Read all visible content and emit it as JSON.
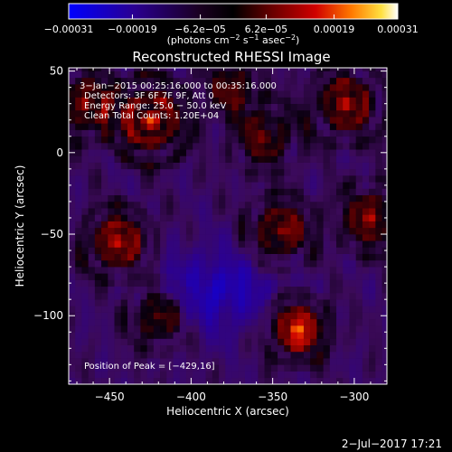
{
  "chart_data": {
    "type": "heatmap",
    "title": "Reconstructed RHESSI Image",
    "xlabel": "Heliocentric X (arcsec)",
    "ylabel": "Heliocentric Y (arcsec)",
    "xlim": [
      -475,
      -280
    ],
    "ylim": [
      -142,
      52
    ],
    "x_ticks": [
      -450,
      -400,
      -350,
      -300
    ],
    "x_tick_labels": [
      "−450",
      "−400",
      "−350",
      "−300"
    ],
    "y_ticks": [
      50,
      0,
      -50,
      -100
    ],
    "y_tick_labels": [
      "50",
      "0",
      "−50",
      "−100"
    ],
    "colorbar": {
      "min": -0.00031,
      "max": 0.00031,
      "ticks": [
        -0.00031,
        -0.00019,
        -6.2e-05,
        6.2e-05,
        0.00019,
        0.00031
      ],
      "tick_labels": [
        "−0.00031",
        "−0.00019",
        "−6.2e−05",
        "6.2e−05",
        "0.00019",
        "0.00031"
      ],
      "unit_label": {
        "prefix": "(photons cm",
        "exp1": "−2",
        "mid1": " s",
        "exp2": "−1",
        "mid2": " asec",
        "exp3": "−2",
        "suffix": ")"
      }
    },
    "annotations": {
      "time_range": "3−Jan−2015 00:25:16.000 to 00:35:16.000",
      "detectors": "Detectors: 3F 6F 7F 9F, Att 0",
      "energy_range": "Energy Range: 25.0 − 50.0 keV",
      "clean_counts": "Clean    Total Counts: 1.20E+04",
      "peak": "Position of Peak = [−429,16]"
    },
    "sources": [
      {
        "x": -425,
        "y": 20,
        "amp": 1.0,
        "ring": 14
      },
      {
        "x": -445,
        "y": -55,
        "amp": 0.85,
        "ring": 12
      },
      {
        "x": -335,
        "y": -108,
        "amp": 1.0,
        "ring": 11
      },
      {
        "x": -345,
        "y": -48,
        "amp": 0.75,
        "ring": 12
      },
      {
        "x": -305,
        "y": 30,
        "amp": 0.8,
        "ring": 13
      },
      {
        "x": -290,
        "y": -40,
        "amp": 0.7,
        "ring": 12
      },
      {
        "x": -420,
        "y": -100,
        "amp": 0.7,
        "ring": 11
      },
      {
        "x": -355,
        "y": 10,
        "amp": 0.6,
        "ring": 12
      },
      {
        "x": -465,
        "y": 30,
        "amp": 0.7,
        "ring": 12
      },
      {
        "x": -375,
        "y": 40,
        "amp": 0.5,
        "ring": 10
      }
    ],
    "negative_region": {
      "x": -385,
      "y": -85,
      "amp": 0.9
    }
  },
  "footer": {
    "date": "2−Jul−2017 17:21"
  }
}
